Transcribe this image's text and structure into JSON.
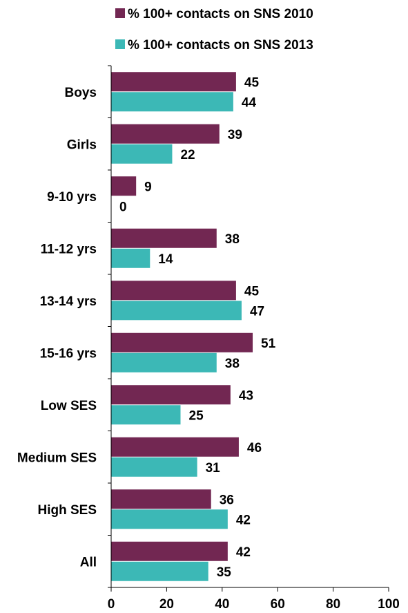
{
  "chart_data": {
    "type": "bar",
    "orientation": "horizontal",
    "categories": [
      "Boys",
      "Girls",
      "9-10 yrs",
      "11-12 yrs",
      "13-14 yrs",
      "15-16 yrs",
      "Low SES",
      "Medium SES",
      "High SES",
      "All"
    ],
    "series": [
      {
        "name": "% 100+ contacts on SNS 2010",
        "color": "#722752",
        "values": [
          45,
          39,
          9,
          38,
          45,
          51,
          43,
          46,
          36,
          42
        ]
      },
      {
        "name": "% 100+ contacts on SNS 2013",
        "color": "#3CB8B6",
        "values": [
          44,
          22,
          0,
          14,
          47,
          38,
          25,
          31,
          42,
          35
        ]
      }
    ],
    "xlim": [
      0,
      100
    ],
    "xticks": [
      0,
      20,
      40,
      60,
      80,
      100
    ],
    "title": "",
    "xlabel": "",
    "ylabel": "",
    "legend_position": "top",
    "grid": false,
    "data_labels": true
  }
}
